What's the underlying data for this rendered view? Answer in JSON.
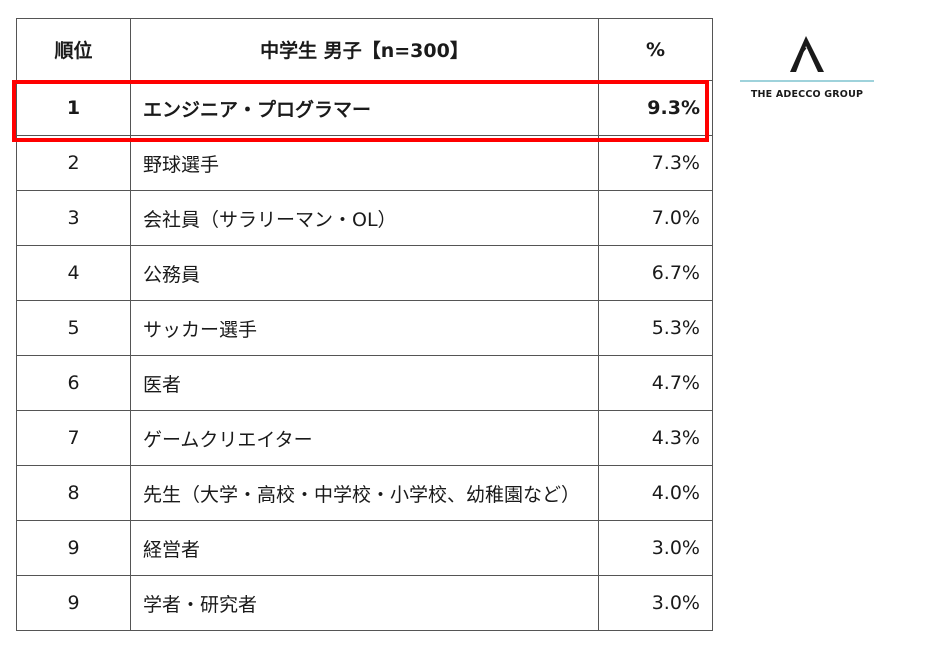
{
  "table": {
    "headers": {
      "rank": "順位",
      "job": "中学生 男子【n=300】",
      "pct": "%"
    },
    "rows": [
      {
        "rank": "1",
        "job": "エンジニア・プログラマー",
        "pct": "9.3%"
      },
      {
        "rank": "2",
        "job": "野球選手",
        "pct": "7.3%"
      },
      {
        "rank": "3",
        "job": "会社員（サラリーマン・OL）",
        "pct": "7.0%"
      },
      {
        "rank": "4",
        "job": "公務員",
        "pct": "6.7%"
      },
      {
        "rank": "5",
        "job": "サッカー選手",
        "pct": "5.3%"
      },
      {
        "rank": "6",
        "job": "医者",
        "pct": "4.7%"
      },
      {
        "rank": "7",
        "job": "ゲームクリエイター",
        "pct": "4.3%"
      },
      {
        "rank": "8",
        "job": "先生（大学・高校・中学校・小学校、幼稚園など）",
        "pct": "4.0%"
      },
      {
        "rank": "9",
        "job": "経営者",
        "pct": "3.0%"
      },
      {
        "rank": "9",
        "job": "学者・研究者",
        "pct": "3.0%"
      }
    ]
  },
  "brand": {
    "name": "THE ADECCO GROUP",
    "logo_icon": "adecco-a-logo-icon",
    "accent_line_color": "#7fc4cf",
    "highlight_color": "#ff0000"
  }
}
